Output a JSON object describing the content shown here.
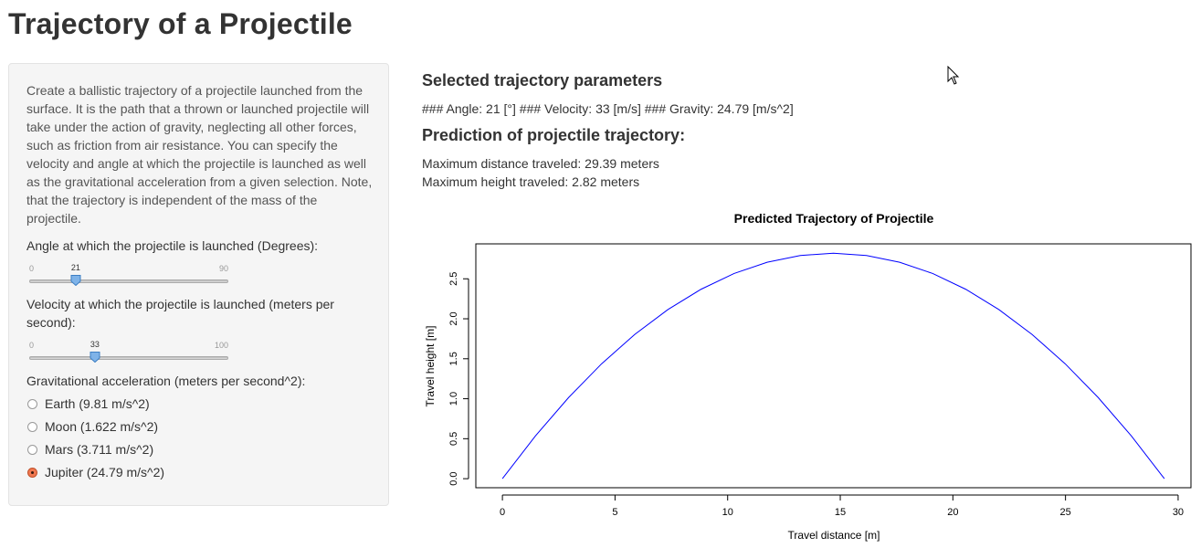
{
  "page": {
    "title": "Trajectory of a Projectile"
  },
  "sidebar": {
    "intro": "Create a ballistic trajectory of a projectile launched from the surface. It is the path that a thrown or launched projectile will take under the action of gravity, neglecting all other forces, such as friction from air resistance. You can specify the velocity and angle at which the projectile is launched as well as the gravitational acceleration from a given selection. Note, that the trajectory is independent of the mass of the projectile.",
    "angle": {
      "label": "Angle at which the projectile is launched (Degrees):",
      "min": 0,
      "max": 90,
      "value": 21,
      "min_text": "0",
      "max_text": "90",
      "value_text": "21"
    },
    "velocity": {
      "label": "Velocity at which the projectile is launched (meters per second):",
      "min": 0,
      "max": 100,
      "value": 33,
      "min_text": "0",
      "max_text": "100",
      "value_text": "33"
    },
    "gravity": {
      "label": "Gravitational acceleration (meters per second^2):",
      "options": [
        {
          "label": "Earth (9.81 m/s^2)",
          "checked": false
        },
        {
          "label": "Moon (1.622 m/s^2)",
          "checked": false
        },
        {
          "label": "Mars (3.711 m/s^2)",
          "checked": false
        },
        {
          "label": "Jupiter (24.79 m/s^2)",
          "checked": true
        }
      ]
    }
  },
  "main": {
    "params_heading": "Selected trajectory parameters",
    "params_text": "### Angle: 21 [°] ### Velocity: 33 [m/s] ### Gravity: 24.79 [m/s^2]",
    "prediction_heading": "Prediction of projectile trajectory:",
    "max_distance": "Maximum distance traveled: 29.39 meters",
    "max_height": "Maximum height traveled: 2.82 meters"
  },
  "colors": {
    "line": "#0000ff",
    "radio_checked": "#f07850",
    "slider_handle": "#7fb3e8"
  },
  "chart_data": {
    "type": "line",
    "title": "Predicted Trajectory of Projectile",
    "xlabel": "Travel distance [m]",
    "ylabel": "Travel height [m]",
    "xlim": [
      -1.18,
      30.57
    ],
    "ylim": [
      -0.113,
      2.937
    ],
    "x_ticks": [
      0,
      5,
      10,
      15,
      20,
      25,
      30
    ],
    "x_tick_labels": [
      "0",
      "5",
      "10",
      "15",
      "20",
      "25",
      "30"
    ],
    "y_ticks": [
      0.0,
      0.5,
      1.0,
      1.5,
      2.0,
      2.5
    ],
    "y_tick_labels": [
      "0.0",
      "0.5",
      "1.0",
      "1.5",
      "2.0",
      "2.5"
    ],
    "series": [
      {
        "x": [
          0,
          1.4695,
          2.939,
          4.4085,
          5.878,
          7.3475,
          8.817,
          10.2865,
          11.756,
          13.2255,
          14.695,
          16.1645,
          17.634,
          19.1035,
          20.573,
          22.0425,
          23.512,
          24.9815,
          26.451,
          27.9205,
          29.39
        ],
        "y": [
          0,
          0.5358,
          1.0152,
          1.4382,
          1.8048,
          2.115,
          2.3688,
          2.5662,
          2.7072,
          2.7918,
          2.82,
          2.7918,
          2.7072,
          2.5662,
          2.3688,
          2.115,
          1.8048,
          1.4382,
          1.0152,
          0.5358,
          0
        ]
      }
    ]
  }
}
